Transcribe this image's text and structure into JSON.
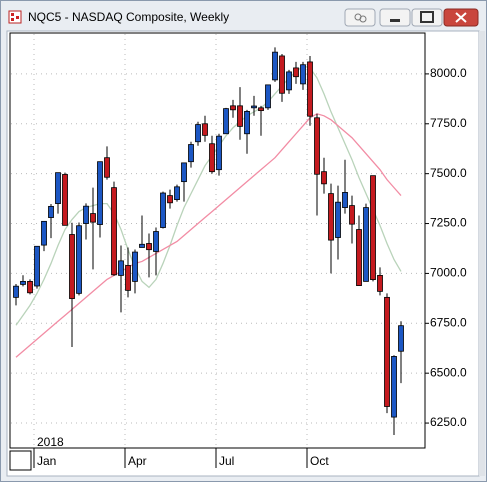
{
  "window": {
    "title": "NQC5 - NASDAQ Composite, Weekly"
  },
  "chart_data": {
    "type": "candlestick",
    "year_label": "2018",
    "categories": [
      null,
      null,
      null,
      "Jan",
      null,
      null,
      null,
      null,
      null,
      null,
      null,
      null,
      null,
      null,
      null,
      null,
      "Apr",
      null,
      null,
      null,
      null,
      null,
      null,
      null,
      null,
      null,
      null,
      null,
      null,
      "Jul",
      null,
      null,
      null,
      null,
      null,
      null,
      null,
      null,
      null,
      null,
      null,
      null,
      "Oct",
      null,
      null,
      null,
      null,
      null,
      null,
      null,
      null,
      null,
      null,
      null,
      null,
      null
    ],
    "open": [
      6880,
      6945,
      6960,
      6937,
      7142,
      7280,
      7350,
      7496,
      7195,
      6900,
      7250,
      7300,
      7245,
      7580,
      7430,
      6990,
      7040,
      6960,
      7130,
      7150,
      7110,
      7230,
      7390,
      7370,
      7460,
      7560,
      7660,
      7750,
      7650,
      7520,
      7700,
      7840,
      7840,
      7700,
      7830,
      7830,
      7830,
      7970,
      8090,
      7920,
      8030,
      7950,
      8060,
      7780,
      7510,
      7400,
      7180,
      7330,
      7340,
      7220,
      6960,
      7490,
      6990,
      6880,
      6280,
      6610
    ],
    "high": [
      6947,
      6991,
      6970,
      7137,
      7262,
      7348,
      7506,
      7505,
      7254,
      7255,
      7351,
      7430,
      7561,
      7637,
      7460,
      7140,
      7130,
      7120,
      7290,
      7200,
      7230,
      7410,
      7420,
      7445,
      7555,
      7660,
      7760,
      7790,
      7690,
      7700,
      7830,
      7870,
      7934,
      7820,
      7890,
      7840,
      7945,
      8133,
      8100,
      8020,
      8060,
      8060,
      8090,
      7800,
      7580,
      7450,
      7440,
      7570,
      7390,
      7290,
      7350,
      7490,
      7030,
      6900,
      6590,
      6760
    ],
    "low": [
      6840,
      6935,
      6895,
      6924,
      7112,
      7177,
      7300,
      7240,
      6631,
      6890,
      7170,
      7020,
      7180,
      7470,
      6988,
      6805,
      6880,
      6900,
      7130,
      6980,
      6990,
      7225,
      7325,
      7360,
      7360,
      7530,
      7640,
      7660,
      7500,
      7490,
      7700,
      7780,
      7670,
      7600,
      7790,
      7690,
      7820,
      7960,
      7860,
      7900,
      7950,
      7920,
      7740,
      7290,
      7400,
      7000,
      7070,
      7300,
      7150,
      6940,
      6960,
      6960,
      6890,
      6300,
      6190,
      6450
    ],
    "close": [
      6936,
      6960,
      6903,
      7136,
      7261,
      7336,
      7505,
      7241,
      6874,
      7239,
      7337,
      7257,
      7560,
      7482,
      6993,
      7063,
      6915,
      7107,
      7146,
      7119,
      7210,
      7403,
      7354,
      7434,
      7554,
      7646,
      7746,
      7692,
      7510,
      7688,
      7826,
      7820,
      7737,
      7812,
      7839,
      7816,
      7945,
      8109,
      7903,
      8010,
      7986,
      8046,
      7788,
      7497,
      7449,
      7167,
      7357,
      7406,
      7247,
      6939,
      7330,
      6969,
      6910,
      6333,
      6584,
      6738
    ],
    "up_color": "#1c57c4",
    "down_color": "#c41a1f",
    "series": [
      {
        "color": "#b9d3ba",
        "values": [
          6740,
          6790,
          6840,
          6900,
          6970,
          7050,
          7140,
          7220,
          7270,
          7310,
          7330,
          7340,
          7350,
          7350,
          7300,
          7220,
          7120,
          7030,
          6960,
          6930,
          6970,
          7050,
          7140,
          7240,
          7330,
          7400,
          7470,
          7540,
          7590,
          7640,
          7690,
          7730,
          7760,
          7790,
          7810,
          7830,
          7860,
          7900,
          7940,
          7980,
          8010,
          8040,
          8030,
          7980,
          7900,
          7810,
          7730,
          7650,
          7570,
          7480,
          7400,
          7320,
          7240,
          7150,
          7070,
          7010
        ]
      },
      {
        "color": "#f28ca4",
        "values": [
          6580,
          6610,
          6640,
          6670,
          6700,
          6730,
          6760,
          6790,
          6820,
          6850,
          6880,
          6910,
          6940,
          6970,
          6990,
          7010,
          7030,
          7050,
          7060,
          7080,
          7100,
          7120,
          7140,
          7160,
          7190,
          7220,
          7250,
          7280,
          7310,
          7340,
          7370,
          7400,
          7430,
          7460,
          7490,
          7520,
          7550,
          7580,
          7620,
          7660,
          7700,
          7740,
          7780,
          7800,
          7790,
          7770,
          7740,
          7710,
          7680,
          7640,
          7600,
          7560,
          7520,
          7470,
          7430,
          7390
        ]
      }
    ],
    "ylim": [
      6125,
      8205
    ],
    "yticks": [
      {
        "value": 6250,
        "label": "6250.0"
      },
      {
        "value": 6500,
        "label": "6500.0"
      },
      {
        "value": 6750,
        "label": "6750.0"
      },
      {
        "value": 7000,
        "label": "7000.0"
      },
      {
        "value": 7250,
        "label": "7250.0"
      },
      {
        "value": 7500,
        "label": "7500.0"
      },
      {
        "value": 7750,
        "label": "7750.0"
      },
      {
        "value": 8000,
        "label": "8000.0"
      }
    ],
    "grid": true
  }
}
